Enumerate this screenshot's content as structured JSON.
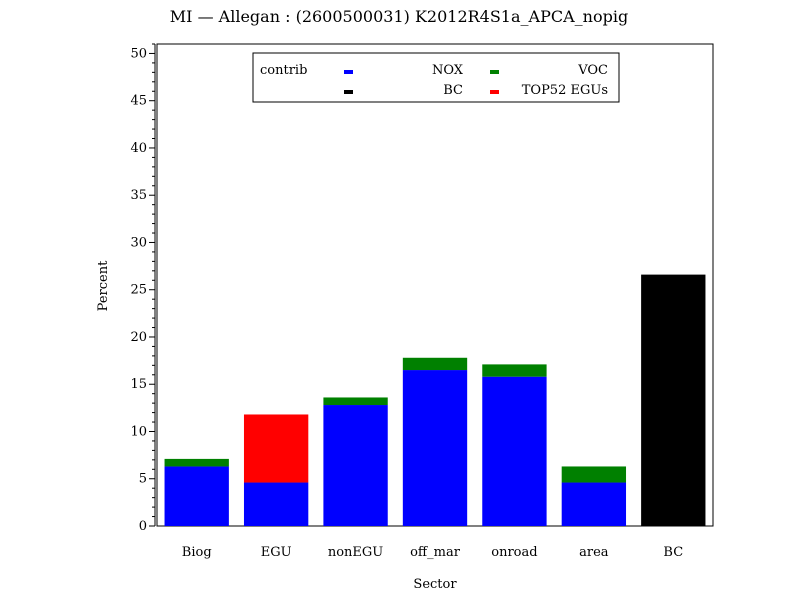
{
  "chart_data": {
    "type": "bar",
    "stacked": true,
    "title": "MI  —  Allegan  : (2600500031)  K2012R4S1a_APCA_nopig",
    "xlabel": "Sector",
    "ylabel": "Percent",
    "ylim": [
      0,
      51
    ],
    "yticks": [
      0,
      5,
      10,
      15,
      20,
      25,
      30,
      35,
      40,
      45,
      50
    ],
    "categories": [
      "Biog",
      "EGU",
      "nonEGU",
      "off_mar",
      "onroad",
      "area",
      "BC"
    ],
    "legend": {
      "title": "contrib",
      "placement": "top-center"
    },
    "series": [
      {
        "name": "NOX",
        "color": "#0000ff",
        "values": [
          6.3,
          4.6,
          12.8,
          16.5,
          15.8,
          4.6,
          0
        ]
      },
      {
        "name": "VOC",
        "color": "#008000",
        "values": [
          0.8,
          0,
          0.8,
          1.3,
          1.3,
          1.7,
          0
        ]
      },
      {
        "name": "BC",
        "color": "#000000",
        "values": [
          0,
          0,
          0,
          0,
          0,
          0,
          26.6
        ]
      },
      {
        "name": "TOP52 EGUs",
        "color": "#ff0000",
        "values": [
          0,
          7.2,
          0,
          0,
          0,
          0,
          0
        ]
      }
    ]
  }
}
